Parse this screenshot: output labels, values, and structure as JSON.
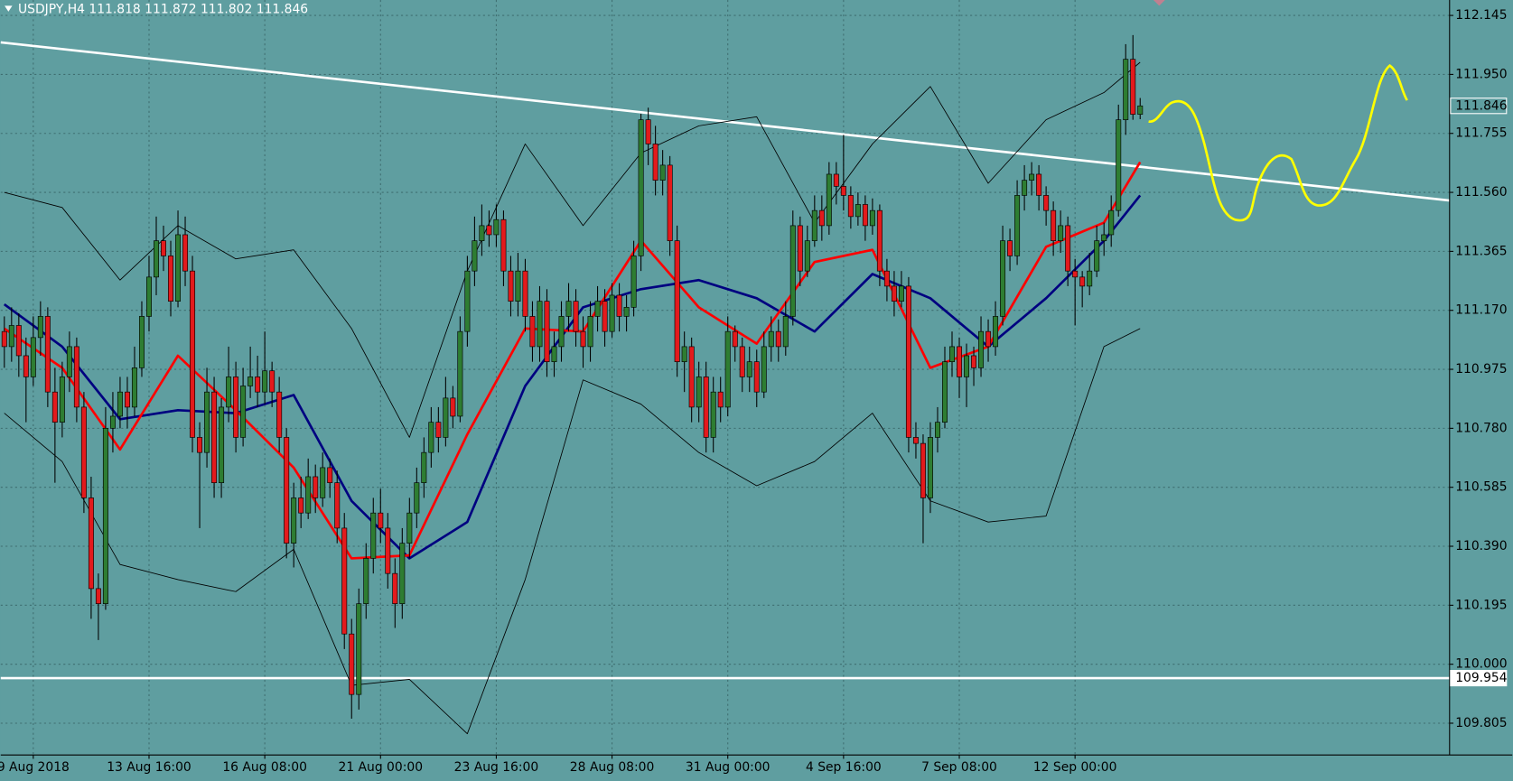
{
  "chart_data": {
    "type": "candlestick",
    "title": "USDJPY,H4  111.818 111.872 111.802 111.846",
    "up_color": "#2e7d32",
    "down_color": "#e31a1c",
    "background": "#5f9ea0",
    "grid": true,
    "xlim": [
      -0.5,
      199.77
    ],
    "ylim": [
      109.7,
      112.196
    ],
    "xticks": [
      {
        "value": 4,
        "label": "9 Aug 2018"
      },
      {
        "value": 20,
        "label": "13 Aug 16:00"
      },
      {
        "value": 36,
        "label": "16 Aug 08:00"
      },
      {
        "value": 52,
        "label": "21 Aug 00:00"
      },
      {
        "value": 68,
        "label": "23 Aug 16:00"
      },
      {
        "value": 84,
        "label": "28 Aug 08:00"
      },
      {
        "value": 100,
        "label": "31 Aug 00:00"
      },
      {
        "value": 116,
        "label": "4 Sep 16:00"
      },
      {
        "value": 132,
        "label": "7 Sep 08:00"
      },
      {
        "value": 148,
        "label": "12 Sep 00:00"
      }
    ],
    "yticks": [
      112.145,
      {
        "value": 111.95,
        "label": "111.950"
      },
      111.755,
      {
        "value": 111.56,
        "label": "111.560"
      },
      111.365,
      {
        "value": 111.17,
        "label": "111.170"
      },
      110.975,
      {
        "value": 110.78,
        "label": "110.780"
      },
      110.585,
      {
        "value": 110.39,
        "label": "110.390"
      },
      110.195,
      {
        "value": 110,
        "label": "110.000"
      },
      109.805
    ],
    "ohlc": [
      [
        111.1,
        111.15,
        110.98,
        111.05
      ],
      [
        111.05,
        111.18,
        111.0,
        111.12
      ],
      [
        111.12,
        111.16,
        110.95,
        111.02
      ],
      [
        111.02,
        111.08,
        110.8,
        110.95
      ],
      [
        110.95,
        111.15,
        110.92,
        111.08
      ],
      [
        111.08,
        111.2,
        111.02,
        111.15
      ],
      [
        111.15,
        111.18,
        110.85,
        110.9
      ],
      [
        110.9,
        110.98,
        110.6,
        110.8
      ],
      [
        110.8,
        111.0,
        110.75,
        110.95
      ],
      [
        110.95,
        111.1,
        110.9,
        111.05
      ],
      [
        111.05,
        111.08,
        110.8,
        110.85
      ],
      [
        110.85,
        110.9,
        110.5,
        110.55
      ],
      [
        110.55,
        110.62,
        110.15,
        110.25
      ],
      [
        110.25,
        110.3,
        110.08,
        110.2
      ],
      [
        110.2,
        110.85,
        110.18,
        110.78
      ],
      [
        110.78,
        110.9,
        110.7,
        110.82
      ],
      [
        110.82,
        110.95,
        110.78,
        110.9
      ],
      [
        110.9,
        110.95,
        110.78,
        110.85
      ],
      [
        110.85,
        111.05,
        110.82,
        110.98
      ],
      [
        110.98,
        111.2,
        110.95,
        111.15
      ],
      [
        111.15,
        111.35,
        111.1,
        111.28
      ],
      [
        111.28,
        111.48,
        111.22,
        111.4
      ],
      [
        111.4,
        111.45,
        111.3,
        111.35
      ],
      [
        111.35,
        111.4,
        111.15,
        111.2
      ],
      [
        111.2,
        111.5,
        111.18,
        111.42
      ],
      [
        111.42,
        111.48,
        111.25,
        111.3
      ],
      [
        111.3,
        111.35,
        110.7,
        110.75
      ],
      [
        110.75,
        110.8,
        110.45,
        110.7
      ],
      [
        110.7,
        110.98,
        110.65,
        110.9
      ],
      [
        110.9,
        110.95,
        110.55,
        110.6
      ],
      [
        110.6,
        110.88,
        110.55,
        110.85
      ],
      [
        110.85,
        111.05,
        110.8,
        110.95
      ],
      [
        110.95,
        111.0,
        110.7,
        110.75
      ],
      [
        110.75,
        110.98,
        110.72,
        110.92
      ],
      [
        110.92,
        111.05,
        110.88,
        110.95
      ],
      [
        110.95,
        111.02,
        110.85,
        110.9
      ],
      [
        110.9,
        111.1,
        110.86,
        110.97
      ],
      [
        110.97,
        111.0,
        110.85,
        110.9
      ],
      [
        110.9,
        110.95,
        110.7,
        110.75
      ],
      [
        110.75,
        110.78,
        110.35,
        110.4
      ],
      [
        110.4,
        110.6,
        110.32,
        110.55
      ],
      [
        110.55,
        110.62,
        110.45,
        110.5
      ],
      [
        110.5,
        110.68,
        110.48,
        110.62
      ],
      [
        110.62,
        110.66,
        110.5,
        110.55
      ],
      [
        110.55,
        110.7,
        110.52,
        110.65
      ],
      [
        110.65,
        110.68,
        110.55,
        110.6
      ],
      [
        110.6,
        110.64,
        110.4,
        110.45
      ],
      [
        110.45,
        110.5,
        110.05,
        110.1
      ],
      [
        110.1,
        110.15,
        109.82,
        109.9
      ],
      [
        109.9,
        110.25,
        109.85,
        110.2
      ],
      [
        110.2,
        110.4,
        110.15,
        110.35
      ],
      [
        110.35,
        110.55,
        110.3,
        110.5
      ],
      [
        110.5,
        110.58,
        110.4,
        110.45
      ],
      [
        110.45,
        110.5,
        110.25,
        110.3
      ],
      [
        110.3,
        110.35,
        110.12,
        110.2
      ],
      [
        110.2,
        110.45,
        110.15,
        110.4
      ],
      [
        110.4,
        110.55,
        110.35,
        110.5
      ],
      [
        110.5,
        110.65,
        110.45,
        110.6
      ],
      [
        110.6,
        110.75,
        110.55,
        110.7
      ],
      [
        110.7,
        110.85,
        110.65,
        110.8
      ],
      [
        110.8,
        110.85,
        110.7,
        110.75
      ],
      [
        110.75,
        110.95,
        110.72,
        110.88
      ],
      [
        110.88,
        110.92,
        110.78,
        110.82
      ],
      [
        110.82,
        111.15,
        110.8,
        111.1
      ],
      [
        111.1,
        111.35,
        111.05,
        111.3
      ],
      [
        111.3,
        111.48,
        111.25,
        111.4
      ],
      [
        111.4,
        111.52,
        111.35,
        111.45
      ],
      [
        111.45,
        111.5,
        111.38,
        111.42
      ],
      [
        111.42,
        111.52,
        111.38,
        111.47
      ],
      [
        111.47,
        111.5,
        111.25,
        111.3
      ],
      [
        111.3,
        111.35,
        111.15,
        111.2
      ],
      [
        111.2,
        111.36,
        111.15,
        111.3
      ],
      [
        111.3,
        111.34,
        111.1,
        111.15
      ],
      [
        111.15,
        111.2,
        111.0,
        111.05
      ],
      [
        111.05,
        111.25,
        111.0,
        111.2
      ],
      [
        111.2,
        111.24,
        110.95,
        111.0
      ],
      [
        111.0,
        111.1,
        110.95,
        111.05
      ],
      [
        111.05,
        111.2,
        111.0,
        111.15
      ],
      [
        111.15,
        111.26,
        111.1,
        111.2
      ],
      [
        111.2,
        111.24,
        111.05,
        111.1
      ],
      [
        111.1,
        111.15,
        110.98,
        111.05
      ],
      [
        111.05,
        111.2,
        111.0,
        111.15
      ],
      [
        111.15,
        111.25,
        111.1,
        111.2
      ],
      [
        111.2,
        111.24,
        111.05,
        111.1
      ],
      [
        111.1,
        111.26,
        111.08,
        111.22
      ],
      [
        111.22,
        111.26,
        111.1,
        111.15
      ],
      [
        111.15,
        111.22,
        111.1,
        111.18
      ],
      [
        111.18,
        111.4,
        111.15,
        111.35
      ],
      [
        111.35,
        111.82,
        111.3,
        111.8
      ],
      [
        111.8,
        111.84,
        111.65,
        111.72
      ],
      [
        111.72,
        111.78,
        111.55,
        111.6
      ],
      [
        111.6,
        111.7,
        111.55,
        111.65
      ],
      [
        111.65,
        111.68,
        111.35,
        111.4
      ],
      [
        111.4,
        111.45,
        110.95,
        111.0
      ],
      [
        111.0,
        111.1,
        110.9,
        111.05
      ],
      [
        111.05,
        111.08,
        110.8,
        110.85
      ],
      [
        110.85,
        111.0,
        110.8,
        110.95
      ],
      [
        110.95,
        111.0,
        110.7,
        110.75
      ],
      [
        110.75,
        110.95,
        110.7,
        110.9
      ],
      [
        110.9,
        110.95,
        110.8,
        110.85
      ],
      [
        110.85,
        111.15,
        110.82,
        111.1
      ],
      [
        111.1,
        111.12,
        111.0,
        111.05
      ],
      [
        111.05,
        111.08,
        110.9,
        110.95
      ],
      [
        110.95,
        111.05,
        110.9,
        111.0
      ],
      [
        111.0,
        111.04,
        110.85,
        110.9
      ],
      [
        110.9,
        111.1,
        110.88,
        111.05
      ],
      [
        111.05,
        111.15,
        111.0,
        111.1
      ],
      [
        111.1,
        111.14,
        111.0,
        111.05
      ],
      [
        111.05,
        111.2,
        111.02,
        111.15
      ],
      [
        111.15,
        111.5,
        111.12,
        111.45
      ],
      [
        111.45,
        111.48,
        111.25,
        111.3
      ],
      [
        111.3,
        111.45,
        111.28,
        111.4
      ],
      [
        111.4,
        111.55,
        111.38,
        111.5
      ],
      [
        111.5,
        111.55,
        111.4,
        111.45
      ],
      [
        111.45,
        111.66,
        111.42,
        111.62
      ],
      [
        111.62,
        111.66,
        111.52,
        111.58
      ],
      [
        111.58,
        111.75,
        111.5,
        111.55
      ],
      [
        111.55,
        111.58,
        111.44,
        111.48
      ],
      [
        111.48,
        111.56,
        111.45,
        111.52
      ],
      [
        111.52,
        111.55,
        111.4,
        111.45
      ],
      [
        111.45,
        111.54,
        111.42,
        111.5
      ],
      [
        111.5,
        111.52,
        111.25,
        111.3
      ],
      [
        111.3,
        111.34,
        111.2,
        111.25
      ],
      [
        111.25,
        111.3,
        111.15,
        111.2
      ],
      [
        111.2,
        111.3,
        111.18,
        111.25
      ],
      [
        111.25,
        111.28,
        110.7,
        110.75
      ],
      [
        110.75,
        110.8,
        110.68,
        110.73
      ],
      [
        110.73,
        110.76,
        110.4,
        110.55
      ],
      [
        110.55,
        110.8,
        110.5,
        110.75
      ],
      [
        110.75,
        110.85,
        110.7,
        110.8
      ],
      [
        110.8,
        111.05,
        110.78,
        111.0
      ],
      [
        111.0,
        111.1,
        110.95,
        111.05
      ],
      [
        111.05,
        111.08,
        110.88,
        110.95
      ],
      [
        110.95,
        111.06,
        110.85,
        111.02
      ],
      [
        111.02,
        111.05,
        110.92,
        110.98
      ],
      [
        110.98,
        111.15,
        110.95,
        111.1
      ],
      [
        111.1,
        111.14,
        111.0,
        111.05
      ],
      [
        111.05,
        111.2,
        111.02,
        111.15
      ],
      [
        111.15,
        111.45,
        111.12,
        111.4
      ],
      [
        111.4,
        111.44,
        111.3,
        111.35
      ],
      [
        111.35,
        111.6,
        111.32,
        111.55
      ],
      [
        111.55,
        111.65,
        111.5,
        111.6
      ],
      [
        111.6,
        111.66,
        111.55,
        111.62
      ],
      [
        111.62,
        111.65,
        111.5,
        111.55
      ],
      [
        111.55,
        111.58,
        111.45,
        111.5
      ],
      [
        111.5,
        111.53,
        111.35,
        111.4
      ],
      [
        111.4,
        111.5,
        111.36,
        111.45
      ],
      [
        111.45,
        111.48,
        111.25,
        111.3
      ],
      [
        111.3,
        111.34,
        111.12,
        111.28
      ],
      [
        111.28,
        111.3,
        111.18,
        111.25
      ],
      [
        111.25,
        111.36,
        111.22,
        111.3
      ],
      [
        111.3,
        111.45,
        111.28,
        111.4
      ],
      [
        111.4,
        111.46,
        111.35,
        111.42
      ],
      [
        111.42,
        111.55,
        111.38,
        111.5
      ],
      [
        111.5,
        111.85,
        111.48,
        111.8
      ],
      [
        111.8,
        112.05,
        111.75,
        112.0
      ],
      [
        112.0,
        112.08,
        111.8,
        111.818
      ],
      [
        111.818,
        111.872,
        111.802,
        111.846
      ]
    ],
    "x": [
      0,
      8,
      16,
      24,
      32,
      40,
      48,
      56,
      64,
      72,
      80,
      88,
      96,
      104,
      112,
      120,
      128,
      136,
      144,
      152,
      157
    ],
    "series": [
      {
        "color": "#000000",
        "values": [
          111.56,
          111.51,
          111.27,
          111.45,
          111.34,
          111.37,
          111.11,
          110.75,
          111.3,
          111.72,
          111.45,
          111.69,
          111.78,
          111.81,
          111.46,
          111.72,
          111.91,
          111.59,
          111.8,
          111.89,
          111.99
        ]
      },
      {
        "color": "#000000",
        "values": [
          110.83,
          110.67,
          110.33,
          110.28,
          110.24,
          110.38,
          109.93,
          109.95,
          109.77,
          110.28,
          110.94,
          110.86,
          110.7,
          110.59,
          110.67,
          110.83,
          110.54,
          110.47,
          110.49,
          111.05,
          111.11
        ]
      },
      {
        "color": "#000080",
        "values": [
          111.19,
          111.05,
          110.81,
          110.84,
          110.83,
          110.89,
          110.54,
          110.35,
          110.47,
          110.92,
          111.18,
          111.24,
          111.27,
          111.21,
          111.1,
          111.29,
          111.21,
          111.05,
          111.21,
          111.4,
          111.55
        ]
      },
      {
        "color": "#ff0000",
        "values": [
          111.11,
          110.98,
          110.71,
          111.02,
          110.84,
          110.65,
          110.35,
          110.36,
          110.76,
          111.11,
          111.1,
          111.4,
          111.18,
          111.06,
          111.33,
          111.37,
          110.98,
          111.05,
          111.38,
          111.46,
          111.66
        ]
      }
    ],
    "trendline": {
      "x": [
        -0.5,
        199.77
      ],
      "values": [
        112.056,
        111.533
      ]
    },
    "horizontal_line": 109.954,
    "horizontal_line_label": "109.954",
    "current_price": 111.846,
    "current_price_label": "111.846"
  }
}
